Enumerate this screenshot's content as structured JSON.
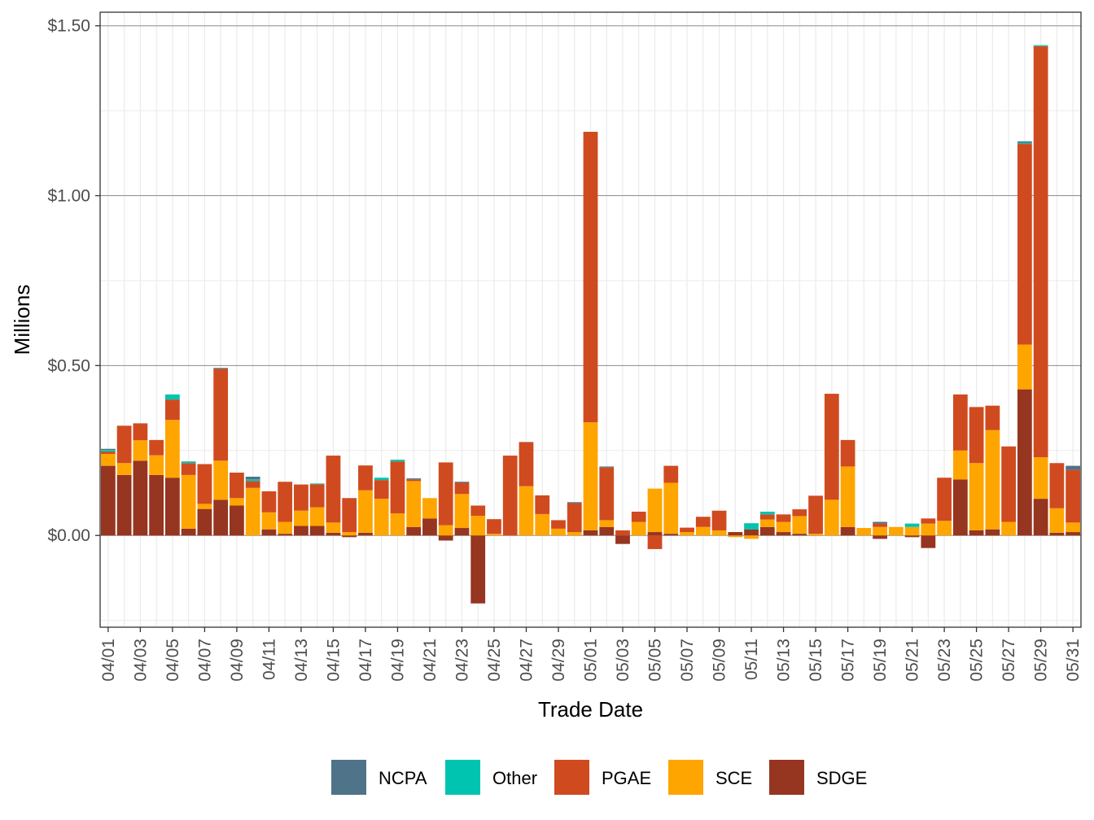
{
  "chart_data": {
    "type": "bar",
    "stacked": true,
    "xlabel": "Trade Date",
    "ylabel": "Millions",
    "ylim": [
      -0.27,
      1.54
    ],
    "yticks": [
      0,
      0.5,
      1.0,
      1.5
    ],
    "ytick_labels": [
      "$0.00",
      "$0.50",
      "$1.00",
      "$1.50"
    ],
    "grid": true,
    "legend_position": "bottom",
    "colors": {
      "NCPA": "#4f7388",
      "Other": "#00c4b0",
      "PGAE": "#d04a20",
      "SCE": "#ffa500",
      "SDGE": "#963520"
    },
    "categories": [
      "04/01",
      "04/02",
      "04/03",
      "04/04",
      "04/05",
      "04/06",
      "04/07",
      "04/08",
      "04/09",
      "04/10",
      "04/11",
      "04/12",
      "04/13",
      "04/14",
      "04/15",
      "04/16",
      "04/17",
      "04/18",
      "04/19",
      "04/20",
      "04/21",
      "04/22",
      "04/23",
      "04/24",
      "04/25",
      "04/26",
      "04/27",
      "04/28",
      "04/29",
      "04/30",
      "05/01",
      "05/02",
      "05/03",
      "05/04",
      "05/05",
      "05/06",
      "05/07",
      "05/08",
      "05/09",
      "05/10",
      "05/11",
      "05/12",
      "05/13",
      "05/14",
      "05/15",
      "05/16",
      "05/17",
      "05/18",
      "05/19",
      "05/20",
      "05/21",
      "05/22",
      "05/23",
      "05/24",
      "05/25",
      "05/26",
      "05/27",
      "05/28",
      "05/29",
      "05/30",
      "05/31"
    ],
    "xtick_labels": [
      "04/01",
      "04/03",
      "04/05",
      "04/07",
      "04/09",
      "04/11",
      "04/13",
      "04/15",
      "04/17",
      "04/19",
      "04/21",
      "04/23",
      "04/25",
      "04/27",
      "04/29",
      "05/01",
      "05/03",
      "05/05",
      "05/07",
      "05/09",
      "05/11",
      "05/13",
      "05/15",
      "05/17",
      "05/19",
      "05/21",
      "05/23",
      "05/25",
      "05/27",
      "05/29",
      "05/31"
    ],
    "series": [
      {
        "name": "SDGE",
        "values": [
          0.205,
          0.178,
          0.22,
          0.178,
          0.17,
          0.02,
          0.078,
          0.105,
          0.088,
          0.0,
          0.018,
          0.005,
          0.028,
          0.028,
          0.008,
          -0.005,
          0.008,
          0.0,
          0.0,
          0.025,
          0.05,
          -0.015,
          0.022,
          -0.2,
          0.0,
          0.0,
          0.0,
          0.0,
          0.0,
          0.0,
          0.015,
          0.025,
          -0.025,
          0.0,
          0.01,
          0.005,
          0.0,
          0.0,
          0.0,
          0.01,
          0.018,
          0.025,
          0.01,
          0.005,
          0.0,
          0.0,
          0.025,
          0.0,
          -0.01,
          0.0,
          -0.005,
          -0.037,
          0.0,
          0.165,
          0.015,
          0.018,
          0.0,
          0.43,
          0.108,
          0.008,
          0.01
        ]
      },
      {
        "name": "SCE",
        "values": [
          0.035,
          0.035,
          0.06,
          0.058,
          0.17,
          0.158,
          0.015,
          0.115,
          0.022,
          0.14,
          0.05,
          0.035,
          0.045,
          0.055,
          0.03,
          0.01,
          0.125,
          0.108,
          0.065,
          0.135,
          0.06,
          0.03,
          0.1,
          0.058,
          0.005,
          0.0,
          0.145,
          0.063,
          0.02,
          0.01,
          0.318,
          0.02,
          0.0,
          0.04,
          0.128,
          0.15,
          0.01,
          0.025,
          0.015,
          -0.005,
          -0.01,
          0.022,
          0.03,
          0.052,
          0.005,
          0.105,
          0.178,
          0.022,
          0.025,
          0.025,
          0.025,
          0.035,
          0.043,
          0.085,
          0.198,
          0.292,
          0.04,
          0.132,
          0.122,
          0.072,
          0.028
        ]
      },
      {
        "name": "PGAE",
        "values": [
          0.007,
          0.11,
          0.05,
          0.045,
          0.06,
          0.035,
          0.117,
          0.27,
          0.075,
          0.02,
          0.062,
          0.118,
          0.077,
          0.068,
          0.197,
          0.1,
          0.073,
          0.055,
          0.153,
          0.005,
          0.0,
          0.185,
          0.033,
          0.03,
          0.043,
          0.235,
          0.13,
          0.055,
          0.025,
          0.085,
          0.855,
          0.155,
          0.015,
          0.03,
          -0.04,
          0.05,
          0.013,
          0.03,
          0.058,
          0.0,
          0.0,
          0.015,
          0.022,
          0.02,
          0.112,
          0.312,
          0.078,
          0.0,
          0.01,
          0.0,
          0.0,
          0.015,
          0.127,
          0.165,
          0.165,
          0.072,
          0.222,
          0.59,
          1.21,
          0.133,
          0.155
        ]
      },
      {
        "name": "Other",
        "values": [
          0.005,
          0.0,
          0.0,
          0.0,
          0.015,
          0.005,
          0.0,
          0.0,
          0.0,
          0.005,
          0.0,
          0.0,
          0.0,
          0.002,
          0.0,
          0.0,
          0.0,
          0.007,
          0.005,
          0.0,
          0.0,
          0.0,
          0.0,
          0.0,
          0.0,
          0.0,
          0.0,
          0.0,
          0.0,
          0.0,
          0.0,
          0.0,
          0.0,
          0.0,
          0.0,
          0.0,
          0.0,
          0.0,
          0.0,
          0.0,
          0.018,
          0.008,
          0.0,
          0.0,
          0.0,
          0.0,
          0.0,
          0.0,
          0.0,
          0.0,
          0.01,
          0.0,
          0.0,
          0.0,
          0.0,
          0.0,
          0.0,
          0.003,
          0.003,
          0.0,
          0.0
        ]
      },
      {
        "name": "NCPA",
        "values": [
          0.003,
          0.0,
          0.0,
          0.0,
          0.0,
          0.0,
          0.0,
          0.003,
          0.0,
          0.008,
          0.0,
          0.0,
          0.0,
          0.0,
          0.0,
          0.0,
          0.0,
          0.0,
          0.0,
          0.003,
          0.0,
          0.0,
          0.003,
          0.0,
          0.0,
          0.0,
          0.0,
          0.0,
          0.0,
          0.003,
          0.0,
          0.003,
          0.0,
          0.0,
          0.0,
          0.0,
          0.0,
          0.0,
          0.0,
          0.0,
          0.0,
          0.0,
          0.0,
          0.0,
          0.0,
          0.0,
          0.0,
          0.0,
          0.005,
          0.0,
          0.0,
          0.0,
          0.0,
          0.0,
          0.0,
          0.0,
          0.0,
          0.005,
          0.0,
          0.0,
          0.012
        ]
      }
    ],
    "legend": [
      "NCPA",
      "Other",
      "PGAE",
      "SCE",
      "SDGE"
    ]
  }
}
